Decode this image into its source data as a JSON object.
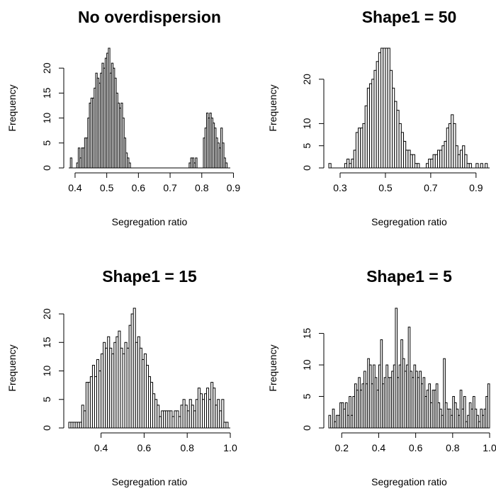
{
  "chart_data": [
    {
      "type": "bar",
      "title": "No overdispersion",
      "xlabel": "Segregation ratio",
      "ylabel": "Frequency",
      "xticks": [
        0.4,
        0.5,
        0.6,
        0.7,
        0.8,
        0.9
      ],
      "xtick_labels": [
        "0.4",
        "0.5",
        "0.6",
        "0.7",
        "0.8",
        "0.9"
      ],
      "yticks": [
        0,
        5,
        10,
        15,
        20
      ],
      "ytick_labels": [
        "0",
        "5",
        "10",
        "15",
        "20"
      ],
      "xlim": [
        0.38,
        0.89
      ],
      "ylim": [
        0,
        24
      ],
      "bin_width": 0.005,
      "bins": [
        [
          0.385,
          2
        ],
        [
          0.405,
          1
        ],
        [
          0.41,
          4
        ],
        [
          0.415,
          2
        ],
        [
          0.42,
          4
        ],
        [
          0.425,
          4
        ],
        [
          0.43,
          6
        ],
        [
          0.435,
          6
        ],
        [
          0.44,
          10
        ],
        [
          0.445,
          13
        ],
        [
          0.45,
          14
        ],
        [
          0.455,
          14
        ],
        [
          0.46,
          16
        ],
        [
          0.465,
          19
        ],
        [
          0.47,
          18
        ],
        [
          0.475,
          17
        ],
        [
          0.48,
          19
        ],
        [
          0.485,
          21
        ],
        [
          0.49,
          20
        ],
        [
          0.495,
          22
        ],
        [
          0.5,
          23
        ],
        [
          0.505,
          24
        ],
        [
          0.51,
          19
        ],
        [
          0.515,
          21
        ],
        [
          0.52,
          20
        ],
        [
          0.525,
          18
        ],
        [
          0.53,
          15
        ],
        [
          0.535,
          13
        ],
        [
          0.54,
          12
        ],
        [
          0.545,
          13
        ],
        [
          0.55,
          10
        ],
        [
          0.555,
          6
        ],
        [
          0.56,
          3
        ],
        [
          0.565,
          2
        ],
        [
          0.57,
          1
        ],
        [
          0.76,
          1
        ],
        [
          0.765,
          2
        ],
        [
          0.77,
          2
        ],
        [
          0.775,
          1
        ],
        [
          0.78,
          2
        ],
        [
          0.805,
          6
        ],
        [
          0.81,
          8
        ],
        [
          0.815,
          11
        ],
        [
          0.82,
          10
        ],
        [
          0.825,
          11
        ],
        [
          0.83,
          10
        ],
        [
          0.835,
          9
        ],
        [
          0.84,
          8
        ],
        [
          0.845,
          6
        ],
        [
          0.85,
          5
        ],
        [
          0.855,
          4
        ],
        [
          0.86,
          8
        ],
        [
          0.865,
          5
        ],
        [
          0.87,
          2
        ],
        [
          0.875,
          1
        ]
      ]
    },
    {
      "type": "bar",
      "title": "Shape1 = 50",
      "xlabel": "Segregation ratio",
      "ylabel": "Frequency",
      "xticks": [
        0.3,
        0.5,
        0.7,
        0.9
      ],
      "xtick_labels": [
        "0.3",
        "0.5",
        "0.7",
        "0.9"
      ],
      "yticks": [
        0,
        5,
        10,
        20
      ],
      "ytick_labels": [
        "0",
        "5",
        "10",
        "20"
      ],
      "xlim": [
        0.25,
        0.96
      ],
      "ylim": [
        0,
        27
      ],
      "bin_width": 0.01,
      "bins": [
        [
          0.25,
          1
        ],
        [
          0.32,
          1
        ],
        [
          0.33,
          2
        ],
        [
          0.34,
          1
        ],
        [
          0.35,
          2
        ],
        [
          0.36,
          4
        ],
        [
          0.37,
          8
        ],
        [
          0.38,
          9
        ],
        [
          0.39,
          9
        ],
        [
          0.4,
          10
        ],
        [
          0.41,
          14
        ],
        [
          0.42,
          18
        ],
        [
          0.43,
          19
        ],
        [
          0.44,
          20
        ],
        [
          0.45,
          22
        ],
        [
          0.46,
          24
        ],
        [
          0.47,
          26
        ],
        [
          0.48,
          27
        ],
        [
          0.49,
          27
        ],
        [
          0.5,
          27
        ],
        [
          0.51,
          27
        ],
        [
          0.52,
          22
        ],
        [
          0.53,
          18
        ],
        [
          0.54,
          15
        ],
        [
          0.55,
          13
        ],
        [
          0.56,
          10
        ],
        [
          0.57,
          8
        ],
        [
          0.58,
          6
        ],
        [
          0.59,
          4
        ],
        [
          0.6,
          4
        ],
        [
          0.61,
          3
        ],
        [
          0.62,
          3
        ],
        [
          0.63,
          1
        ],
        [
          0.64,
          1
        ],
        [
          0.68,
          1
        ],
        [
          0.69,
          2
        ],
        [
          0.7,
          2
        ],
        [
          0.71,
          3
        ],
        [
          0.72,
          3
        ],
        [
          0.73,
          4
        ],
        [
          0.74,
          4
        ],
        [
          0.75,
          5
        ],
        [
          0.76,
          6
        ],
        [
          0.77,
          9
        ],
        [
          0.78,
          10
        ],
        [
          0.79,
          12
        ],
        [
          0.8,
          10
        ],
        [
          0.81,
          5
        ],
        [
          0.82,
          3
        ],
        [
          0.83,
          4
        ],
        [
          0.84,
          5
        ],
        [
          0.85,
          3
        ],
        [
          0.86,
          1
        ],
        [
          0.87,
          1
        ],
        [
          0.9,
          1
        ],
        [
          0.92,
          1
        ],
        [
          0.94,
          1
        ]
      ]
    },
    {
      "type": "bar",
      "title": "Shape1 = 15",
      "xlabel": "Segregation ratio",
      "ylabel": "Frequency",
      "xticks": [
        0.4,
        0.6,
        0.8,
        1.0
      ],
      "xtick_labels": [
        "0.4",
        "0.6",
        "0.8",
        "1.0"
      ],
      "yticks": [
        0,
        5,
        10,
        15,
        20
      ],
      "ytick_labels": [
        "0",
        "5",
        "10",
        "15",
        "20"
      ],
      "xlim": [
        0.25,
        1.0
      ],
      "ylim": [
        0,
        21
      ],
      "bin_width": 0.01,
      "bins": [
        [
          0.25,
          1
        ],
        [
          0.26,
          1
        ],
        [
          0.27,
          1
        ],
        [
          0.28,
          1
        ],
        [
          0.29,
          1
        ],
        [
          0.3,
          1
        ],
        [
          0.31,
          4
        ],
        [
          0.32,
          3
        ],
        [
          0.33,
          8
        ],
        [
          0.34,
          8
        ],
        [
          0.35,
          9
        ],
        [
          0.36,
          11
        ],
        [
          0.37,
          9
        ],
        [
          0.38,
          12
        ],
        [
          0.39,
          10
        ],
        [
          0.4,
          13
        ],
        [
          0.41,
          15
        ],
        [
          0.42,
          14
        ],
        [
          0.43,
          16
        ],
        [
          0.44,
          14
        ],
        [
          0.45,
          13
        ],
        [
          0.46,
          15
        ],
        [
          0.47,
          16
        ],
        [
          0.48,
          17
        ],
        [
          0.49,
          14
        ],
        [
          0.5,
          13
        ],
        [
          0.51,
          15
        ],
        [
          0.52,
          14
        ],
        [
          0.53,
          18
        ],
        [
          0.54,
          20
        ],
        [
          0.55,
          21
        ],
        [
          0.56,
          15
        ],
        [
          0.57,
          16
        ],
        [
          0.58,
          14
        ],
        [
          0.59,
          12
        ],
        [
          0.6,
          13
        ],
        [
          0.61,
          11
        ],
        [
          0.62,
          9
        ],
        [
          0.63,
          8
        ],
        [
          0.64,
          6
        ],
        [
          0.65,
          5
        ],
        [
          0.66,
          4
        ],
        [
          0.67,
          2
        ],
        [
          0.68,
          3
        ],
        [
          0.69,
          3
        ],
        [
          0.7,
          3
        ],
        [
          0.71,
          3
        ],
        [
          0.72,
          3
        ],
        [
          0.73,
          2
        ],
        [
          0.74,
          3
        ],
        [
          0.75,
          3
        ],
        [
          0.76,
          2
        ],
        [
          0.77,
          4
        ],
        [
          0.78,
          5
        ],
        [
          0.79,
          4
        ],
        [
          0.8,
          3
        ],
        [
          0.81,
          5
        ],
        [
          0.82,
          4
        ],
        [
          0.83,
          3
        ],
        [
          0.84,
          5
        ],
        [
          0.85,
          7
        ],
        [
          0.86,
          6
        ],
        [
          0.87,
          5
        ],
        [
          0.88,
          6
        ],
        [
          0.89,
          7
        ],
        [
          0.9,
          5
        ],
        [
          0.91,
          8
        ],
        [
          0.92,
          7
        ],
        [
          0.93,
          4
        ],
        [
          0.94,
          5
        ],
        [
          0.95,
          3
        ],
        [
          0.96,
          5
        ],
        [
          0.97,
          1
        ],
        [
          0.98,
          1
        ]
      ]
    },
    {
      "type": "bar",
      "title": "Shape1 = 5",
      "xlabel": "Segregation ratio",
      "ylabel": "Frequency",
      "xticks": [
        0.2,
        0.4,
        0.6,
        0.8,
        1.0
      ],
      "xtick_labels": [
        "0.2",
        "0.4",
        "0.6",
        "0.8",
        "1.0"
      ],
      "yticks": [
        0,
        5,
        10,
        15
      ],
      "ytick_labels": [
        "0",
        "5",
        "10",
        "15"
      ],
      "xlim": [
        0.13,
        1.0
      ],
      "ylim": [
        0,
        19
      ],
      "bin_width": 0.01,
      "bins": [
        [
          0.13,
          2
        ],
        [
          0.15,
          3
        ],
        [
          0.16,
          1
        ],
        [
          0.17,
          2
        ],
        [
          0.18,
          2
        ],
        [
          0.19,
          4
        ],
        [
          0.2,
          4
        ],
        [
          0.21,
          3
        ],
        [
          0.22,
          4
        ],
        [
          0.23,
          2
        ],
        [
          0.24,
          5
        ],
        [
          0.25,
          2
        ],
        [
          0.26,
          5
        ],
        [
          0.27,
          7
        ],
        [
          0.28,
          6
        ],
        [
          0.29,
          8
        ],
        [
          0.3,
          6
        ],
        [
          0.31,
          7
        ],
        [
          0.32,
          9
        ],
        [
          0.33,
          7
        ],
        [
          0.34,
          11
        ],
        [
          0.35,
          10
        ],
        [
          0.36,
          7
        ],
        [
          0.37,
          10
        ],
        [
          0.38,
          8
        ],
        [
          0.39,
          6
        ],
        [
          0.4,
          10
        ],
        [
          0.41,
          14
        ],
        [
          0.42,
          7
        ],
        [
          0.43,
          8
        ],
        [
          0.44,
          10
        ],
        [
          0.45,
          8
        ],
        [
          0.46,
          8
        ],
        [
          0.47,
          9
        ],
        [
          0.48,
          10
        ],
        [
          0.49,
          19
        ],
        [
          0.5,
          8
        ],
        [
          0.51,
          10
        ],
        [
          0.52,
          14
        ],
        [
          0.53,
          11
        ],
        [
          0.54,
          9
        ],
        [
          0.55,
          10
        ],
        [
          0.56,
          16
        ],
        [
          0.57,
          9
        ],
        [
          0.58,
          8
        ],
        [
          0.59,
          10
        ],
        [
          0.6,
          9
        ],
        [
          0.61,
          8
        ],
        [
          0.62,
          9
        ],
        [
          0.63,
          7
        ],
        [
          0.64,
          8
        ],
        [
          0.65,
          5
        ],
        [
          0.66,
          6
        ],
        [
          0.67,
          7
        ],
        [
          0.68,
          4
        ],
        [
          0.69,
          6
        ],
        [
          0.7,
          6
        ],
        [
          0.71,
          7
        ],
        [
          0.72,
          4
        ],
        [
          0.73,
          3
        ],
        [
          0.74,
          2
        ],
        [
          0.75,
          11
        ],
        [
          0.76,
          4
        ],
        [
          0.77,
          3
        ],
        [
          0.78,
          3
        ],
        [
          0.79,
          2
        ],
        [
          0.8,
          5
        ],
        [
          0.81,
          4
        ],
        [
          0.82,
          3
        ],
        [
          0.83,
          2
        ],
        [
          0.84,
          6
        ],
        [
          0.85,
          3
        ],
        [
          0.86,
          5
        ],
        [
          0.87,
          1
        ],
        [
          0.88,
          2
        ],
        [
          0.89,
          4
        ],
        [
          0.9,
          3
        ],
        [
          0.91,
          5
        ],
        [
          0.92,
          3
        ],
        [
          0.93,
          2
        ],
        [
          0.94,
          1
        ],
        [
          0.95,
          3
        ],
        [
          0.96,
          2
        ],
        [
          0.97,
          3
        ],
        [
          0.98,
          5
        ],
        [
          0.99,
          7
        ]
      ]
    }
  ]
}
